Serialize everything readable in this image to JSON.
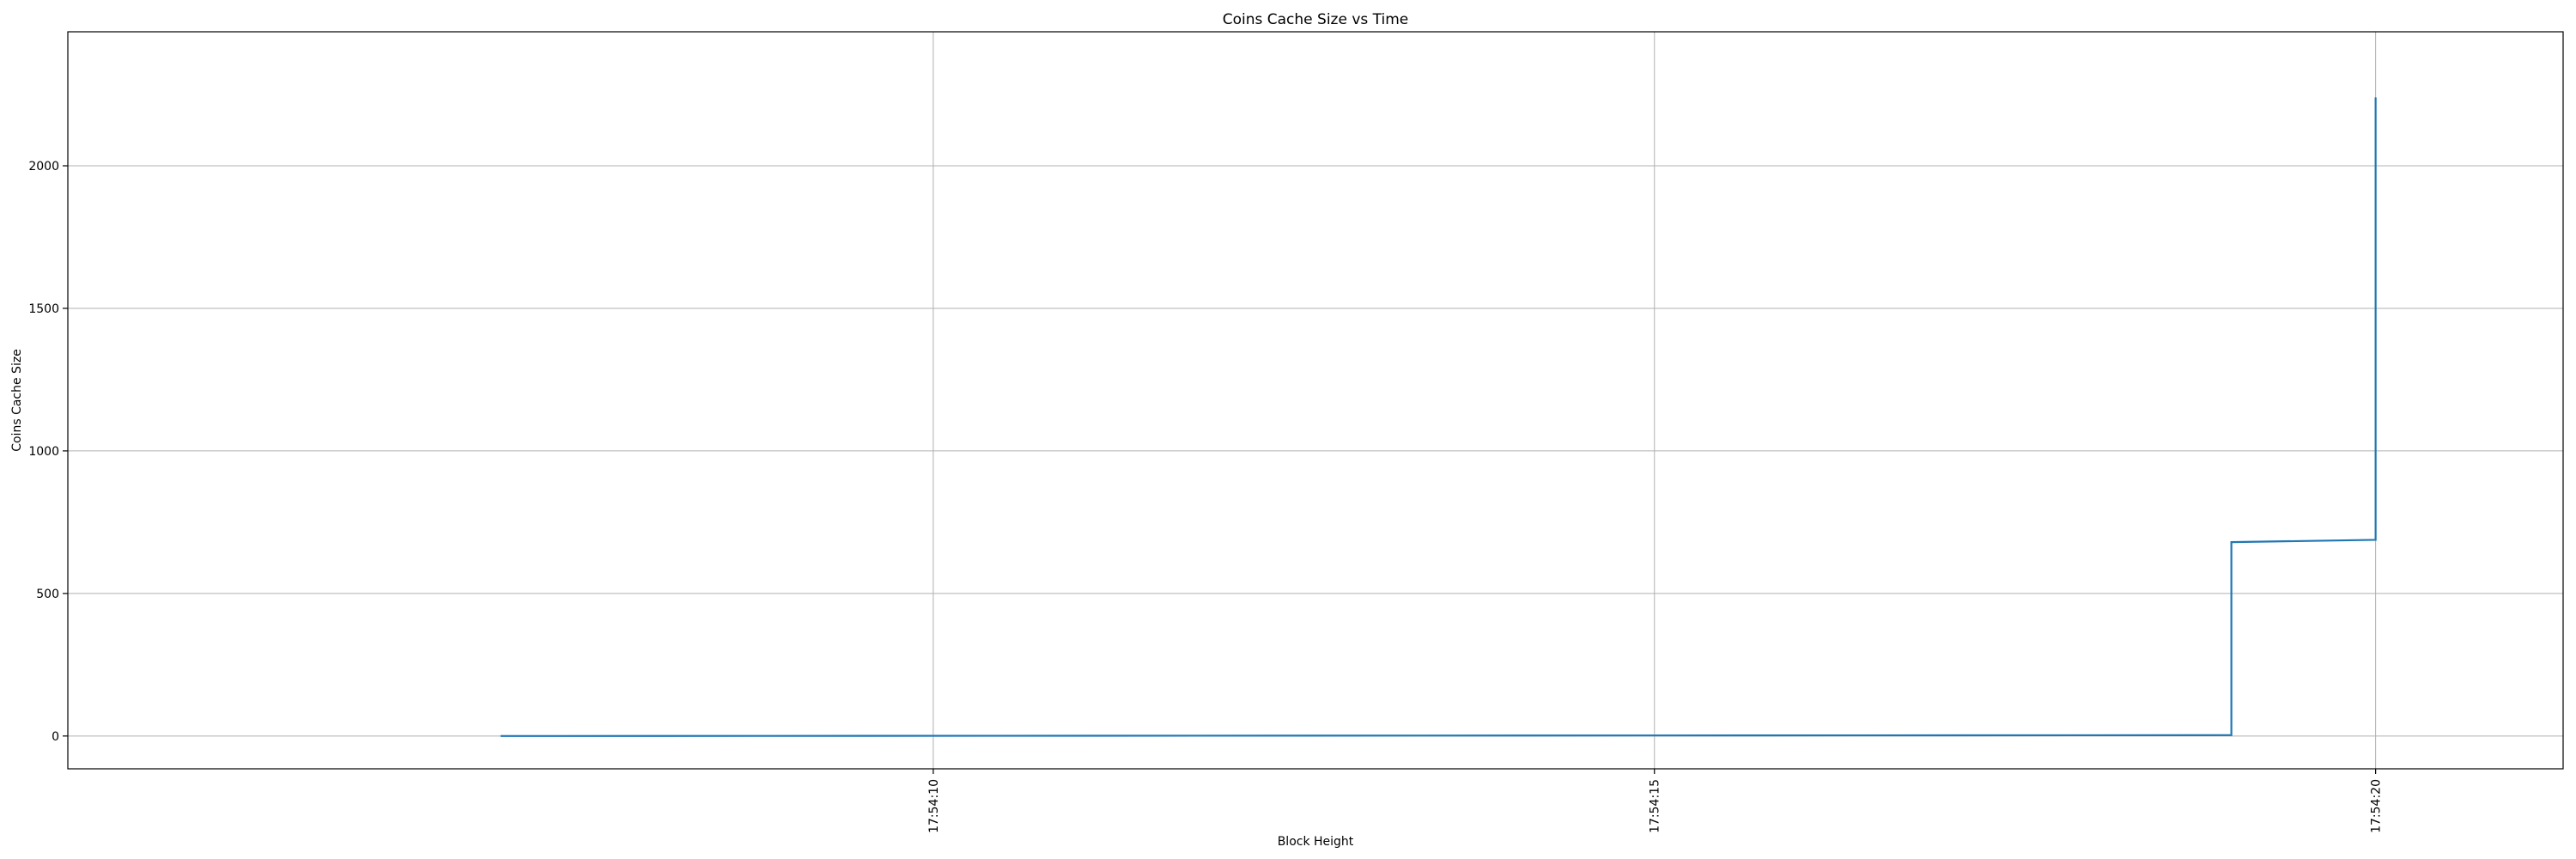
{
  "chart_data": {
    "type": "line",
    "title": "Coins Cache Size vs Time",
    "xlabel": "Block Height",
    "ylabel": "Coins Cache Size",
    "x_format": "time",
    "xlim": [
      "17:54:04.0",
      "17:54:21.3"
    ],
    "ylim": [
      -115,
      2470
    ],
    "x_ticks": [
      "17:54:10",
      "17:54:15",
      "17:54:20"
    ],
    "y_ticks": [
      0,
      500,
      1000,
      1500,
      2000
    ],
    "grid": true,
    "series": [
      {
        "color": "#1f77b4",
        "x": [
          "17:54:07.0",
          "17:54:15.0",
          "17:54:19.0",
          "17:54:19.0",
          "17:54:20.0",
          "17:54:20.0"
        ],
        "y": [
          0,
          2,
          3,
          680,
          688,
          2240
        ]
      }
    ]
  }
}
